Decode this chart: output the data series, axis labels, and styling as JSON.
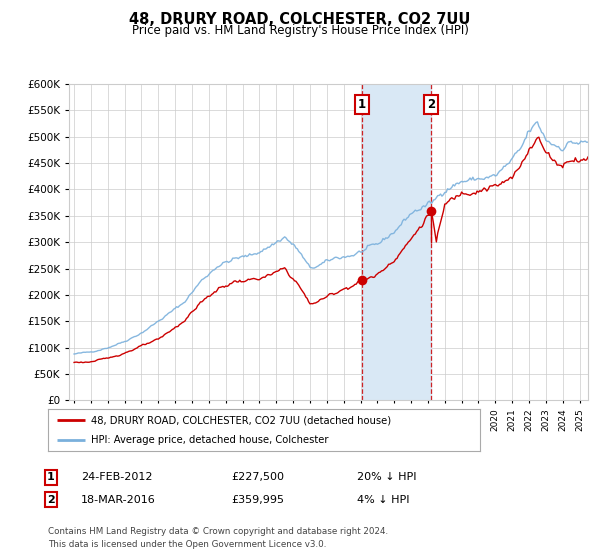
{
  "title": "48, DRURY ROAD, COLCHESTER, CO2 7UU",
  "subtitle": "Price paid vs. HM Land Registry's House Price Index (HPI)",
  "hpi_color": "#7ab0dc",
  "price_color": "#cc0000",
  "transaction1_date": "2012-02-24",
  "transaction1_price": 227500,
  "transaction1_label": "1",
  "transaction1_hpi_pct": "20% ↓ HPI",
  "transaction2_date": "2016-03-18",
  "transaction2_price": 359995,
  "transaction2_label": "2",
  "transaction2_hpi_pct": "4% ↓ HPI",
  "ylim": [
    0,
    600000
  ],
  "yticks": [
    0,
    50000,
    100000,
    150000,
    200000,
    250000,
    300000,
    350000,
    400000,
    450000,
    500000,
    550000,
    600000
  ],
  "start_year": 1995,
  "end_year": 2025,
  "legend_label1": "48, DRURY ROAD, COLCHESTER, CO2 7UU (detached house)",
  "legend_label2": "HPI: Average price, detached house, Colchester",
  "footnote1": "Contains HM Land Registry data © Crown copyright and database right 2024.",
  "footnote2": "This data is licensed under the Open Government Licence v3.0.",
  "background_color": "#ffffff",
  "grid_color": "#cccccc",
  "shade_color": "#d9e8f5",
  "label_box_color": "#cc0000",
  "ann1_date": "24-FEB-2012",
  "ann1_price": "£227,500",
  "ann1_pct": "20% ↓ HPI",
  "ann2_date": "18-MAR-2016",
  "ann2_price": "£359,995",
  "ann2_pct": "4% ↓ HPI"
}
